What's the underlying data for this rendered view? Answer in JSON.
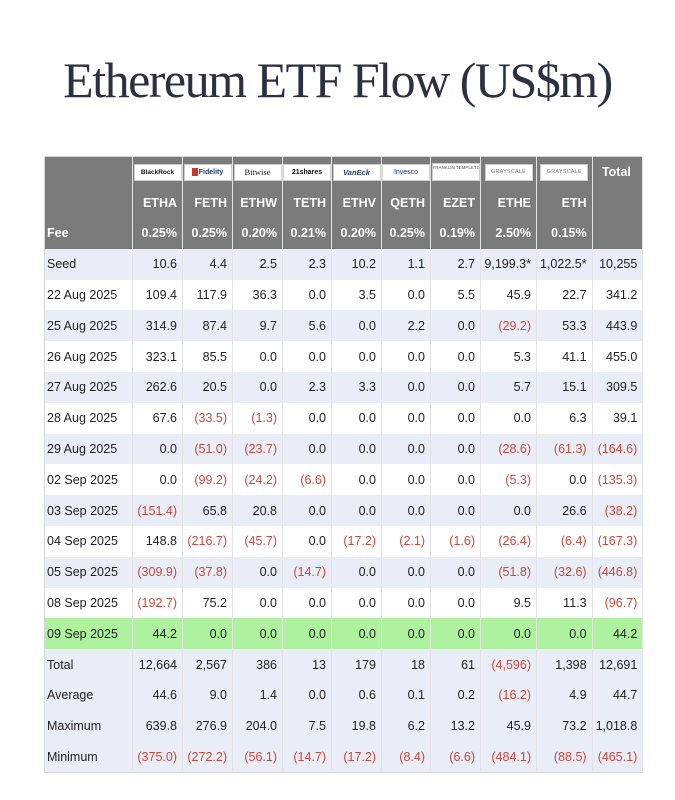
{
  "title": "Ethereum ETF Flow (US$m)",
  "colors": {
    "header_bg": "#7b7b7b",
    "row_alt": "#e9edf7",
    "highlight": "#aef2a0",
    "negative": "#c94a3a"
  },
  "columns": [
    {
      "issuer": "BlackRock",
      "ticker": "ETHA",
      "fee": "0.25%",
      "logo_icon": "blackrock-logo-icon"
    },
    {
      "issuer": "Fidelity",
      "ticker": "FETH",
      "fee": "0.25%",
      "logo_icon": "fidelity-logo-icon"
    },
    {
      "issuer": "Bitwise",
      "ticker": "ETHW",
      "fee": "0.20%",
      "logo_icon": "bitwise-logo-icon"
    },
    {
      "issuer": "21shares",
      "ticker": "TETH",
      "fee": "0.21%",
      "logo_icon": "21shares-logo-icon"
    },
    {
      "issuer": "VanEck",
      "ticker": "ETHV",
      "fee": "0.20%",
      "logo_icon": "vaneck-logo-icon"
    },
    {
      "issuer": "Invesco",
      "ticker": "QETH",
      "fee": "0.25%",
      "logo_icon": "invesco-logo-icon"
    },
    {
      "issuer": "FRANKLIN TEMPLETON",
      "ticker": "EZET",
      "fee": "0.19%",
      "logo_icon": "franklin-templeton-logo-icon"
    },
    {
      "issuer": "GRAYSCALE",
      "ticker": "ETHE",
      "fee": "2.50%",
      "logo_icon": "grayscale-logo-icon"
    },
    {
      "issuer": "GRAYSCALE",
      "ticker": "ETH",
      "fee": "0.15%",
      "logo_icon": "grayscale-logo-icon"
    }
  ],
  "total_header": "Total",
  "fee_label": "Fee",
  "rows": [
    {
      "label": "Seed",
      "style": "light",
      "values": [
        "10.6",
        "4.4",
        "2.5",
        "2.3",
        "10.2",
        "1.1",
        "2.7",
        "9,199.3*",
        "1,022.5*",
        "10,255"
      ]
    },
    {
      "label": "22 Aug 2025",
      "style": "white",
      "values": [
        "109.4",
        "117.9",
        "36.3",
        "0.0",
        "3.5",
        "0.0",
        "5.5",
        "45.9",
        "22.7",
        "341.2"
      ]
    },
    {
      "label": "25 Aug 2025",
      "style": "light",
      "values": [
        "314.9",
        "87.4",
        "9.7",
        "5.6",
        "0.0",
        "2.2",
        "0.0",
        "(29.2)",
        "53.3",
        "443.9"
      ]
    },
    {
      "label": "26 Aug 2025",
      "style": "white",
      "values": [
        "323.1",
        "85.5",
        "0.0",
        "0.0",
        "0.0",
        "0.0",
        "0.0",
        "5.3",
        "41.1",
        "455.0"
      ]
    },
    {
      "label": "27 Aug 2025",
      "style": "light",
      "values": [
        "262.6",
        "20.5",
        "0.0",
        "2.3",
        "3.3",
        "0.0",
        "0.0",
        "5.7",
        "15.1",
        "309.5"
      ]
    },
    {
      "label": "28 Aug 2025",
      "style": "white",
      "values": [
        "67.6",
        "(33.5)",
        "(1.3)",
        "0.0",
        "0.0",
        "0.0",
        "0.0",
        "0.0",
        "6.3",
        "39.1"
      ]
    },
    {
      "label": "29 Aug 2025",
      "style": "light",
      "values": [
        "0.0",
        "(51.0)",
        "(23.7)",
        "0.0",
        "0.0",
        "0.0",
        "0.0",
        "(28.6)",
        "(61.3)",
        "(164.6)"
      ]
    },
    {
      "label": "02 Sep 2025",
      "style": "white",
      "values": [
        "0.0",
        "(99.2)",
        "(24.2)",
        "(6.6)",
        "0.0",
        "0.0",
        "0.0",
        "(5.3)",
        "0.0",
        "(135.3)"
      ]
    },
    {
      "label": "03 Sep 2025",
      "style": "light",
      "values": [
        "(151.4)",
        "65.8",
        "20.8",
        "0.0",
        "0.0",
        "0.0",
        "0.0",
        "0.0",
        "26.6",
        "(38.2)"
      ]
    },
    {
      "label": "04 Sep 2025",
      "style": "white",
      "values": [
        "148.8",
        "(216.7)",
        "(45.7)",
        "0.0",
        "(17.2)",
        "(2.1)",
        "(1.6)",
        "(26.4)",
        "(6.4)",
        "(167.3)"
      ]
    },
    {
      "label": "05 Sep 2025",
      "style": "light",
      "values": [
        "(309.9)",
        "(37.8)",
        "0.0",
        "(14.7)",
        "0.0",
        "0.0",
        "0.0",
        "(51.8)",
        "(32.6)",
        "(446.8)"
      ]
    },
    {
      "label": "08 Sep 2025",
      "style": "white",
      "values": [
        "(192.7)",
        "75.2",
        "0.0",
        "0.0",
        "0.0",
        "0.0",
        "0.0",
        "9.5",
        "11.3",
        "(96.7)"
      ]
    },
    {
      "label": "09 Sep 2025",
      "style": "green",
      "values": [
        "44.2",
        "0.0",
        "0.0",
        "0.0",
        "0.0",
        "0.0",
        "0.0",
        "0.0",
        "0.0",
        "44.2"
      ]
    },
    {
      "label": "Total",
      "style": "light",
      "values": [
        "12,664",
        "2,567",
        "386",
        "13",
        "179",
        "18",
        "61",
        "(4,596)",
        "1,398",
        "12,691"
      ]
    },
    {
      "label": "Average",
      "style": "light",
      "values": [
        "44.6",
        "9.0",
        "1.4",
        "0.0",
        "0.6",
        "0.1",
        "0.2",
        "(16.2)",
        "4.9",
        "44.7"
      ]
    },
    {
      "label": "Maximum",
      "style": "light",
      "values": [
        "639.8",
        "276.9",
        "204.0",
        "7.5",
        "19.8",
        "6.2",
        "13.2",
        "45.9",
        "73.2",
        "1,018.8"
      ]
    },
    {
      "label": "Minimum",
      "style": "light",
      "values": [
        "(375.0)",
        "(272.2)",
        "(56.1)",
        "(14.7)",
        "(17.2)",
        "(8.4)",
        "(6.6)",
        "(484.1)",
        "(88.5)",
        "(465.1)"
      ]
    }
  ]
}
